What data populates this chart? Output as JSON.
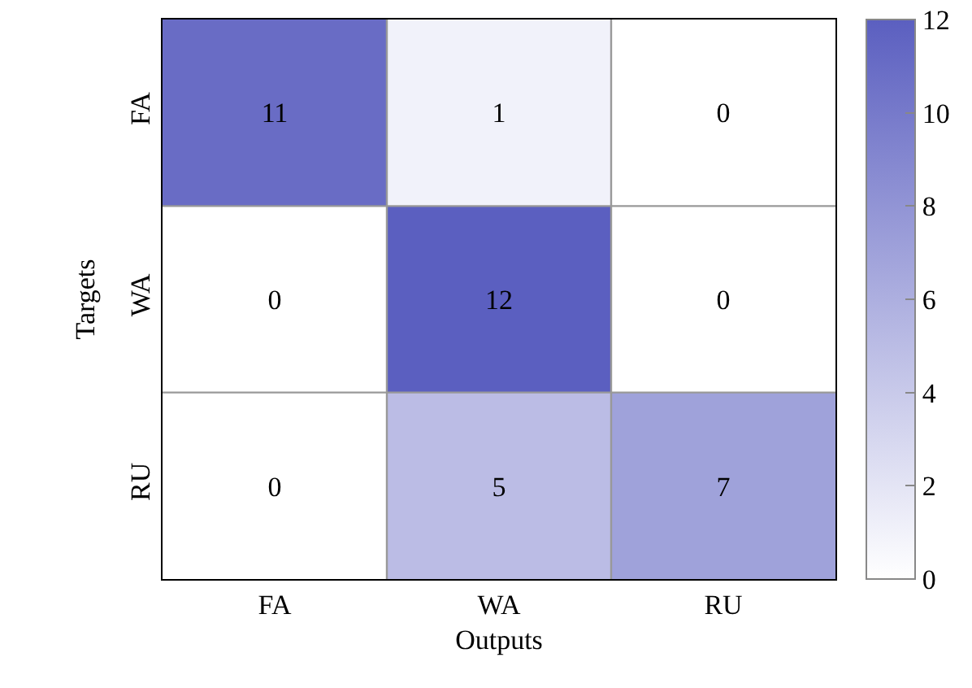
{
  "chart_data": {
    "type": "heatmap",
    "xlabel": "Outputs",
    "ylabel": "Targets",
    "categories": [
      "FA",
      "WA",
      "RU"
    ],
    "y_categories": [
      "FA",
      "WA",
      "RU"
    ],
    "cells": [
      [
        11,
        1,
        0
      ],
      [
        0,
        12,
        0
      ],
      [
        0,
        5,
        7
      ]
    ],
    "clim": [
      0,
      12
    ],
    "cticks": [
      0,
      2,
      4,
      6,
      8,
      10,
      12
    ],
    "color": "#5b5fc0",
    "data_labels": true
  }
}
